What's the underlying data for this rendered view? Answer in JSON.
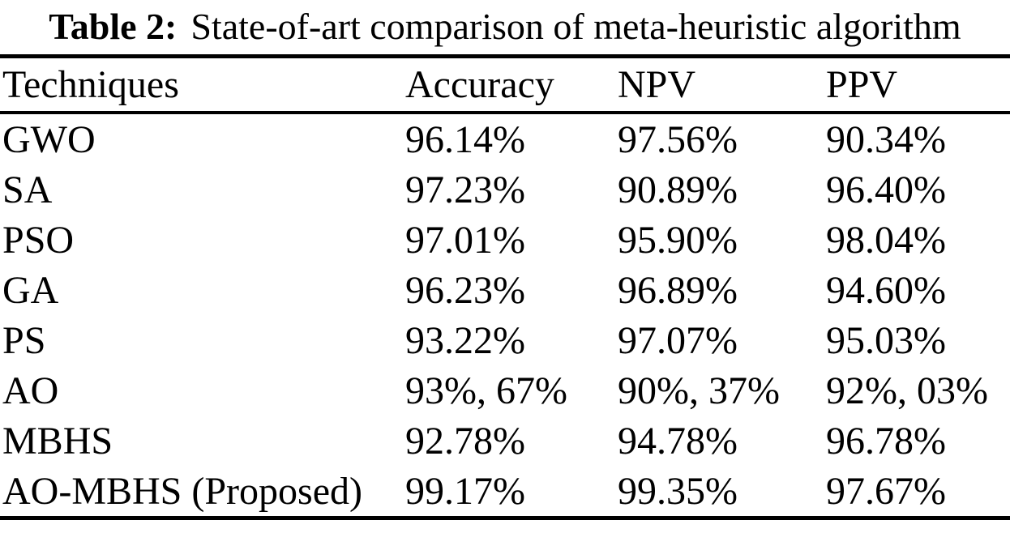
{
  "caption": {
    "label": "Table 2:",
    "text": "State-of-art comparison of meta-heuristic algorithm"
  },
  "table": {
    "columns": [
      "Techniques",
      "Accuracy",
      "NPV",
      "PPV"
    ],
    "rows": [
      {
        "technique": "GWO",
        "accuracy": "96.14%",
        "npv": "97.56%",
        "ppv": "90.34%"
      },
      {
        "technique": "SA",
        "accuracy": "97.23%",
        "npv": "90.89%",
        "ppv": "96.40%"
      },
      {
        "technique": "PSO",
        "accuracy": "97.01%",
        "npv": "95.90%",
        "ppv": "98.04%"
      },
      {
        "technique": "GA",
        "accuracy": "96.23%",
        "npv": "96.89%",
        "ppv": "94.60%"
      },
      {
        "technique": "PS",
        "accuracy": "93.22%",
        "npv": "97.07%",
        "ppv": "95.03%"
      },
      {
        "technique": "AO",
        "accuracy": "93%, 67%",
        "npv": "90%, 37%",
        "ppv": "92%, 03%"
      },
      {
        "technique": "MBHS",
        "accuracy": "92.78%",
        "npv": "94.78%",
        "ppv": "96.78%"
      },
      {
        "technique": "AO-MBHS (Proposed)",
        "accuracy": "99.17%",
        "npv": "99.35%",
        "ppv": "97.67%"
      }
    ]
  },
  "chart_data": {
    "type": "table",
    "title": "Table 2: State-of-art comparison of meta-heuristic algorithm",
    "columns": [
      "Techniques",
      "Accuracy",
      "NPV",
      "PPV"
    ],
    "rows": [
      [
        "GWO",
        "96.14%",
        "97.56%",
        "90.34%"
      ],
      [
        "SA",
        "97.23%",
        "90.89%",
        "96.40%"
      ],
      [
        "PSO",
        "97.01%",
        "95.90%",
        "98.04%"
      ],
      [
        "GA",
        "96.23%",
        "96.89%",
        "94.60%"
      ],
      [
        "PS",
        "93.22%",
        "97.07%",
        "95.03%"
      ],
      [
        "AO",
        "93%, 67%",
        "90%, 37%",
        "92%, 03%"
      ],
      [
        "MBHS",
        "92.78%",
        "94.78%",
        "96.78%"
      ],
      [
        "AO-MBHS (Proposed)",
        "99.17%",
        "99.35%",
        "97.67%"
      ]
    ]
  },
  "colors": {
    "text": "#000000",
    "background": "#ffffff",
    "rules": "#000000"
  }
}
